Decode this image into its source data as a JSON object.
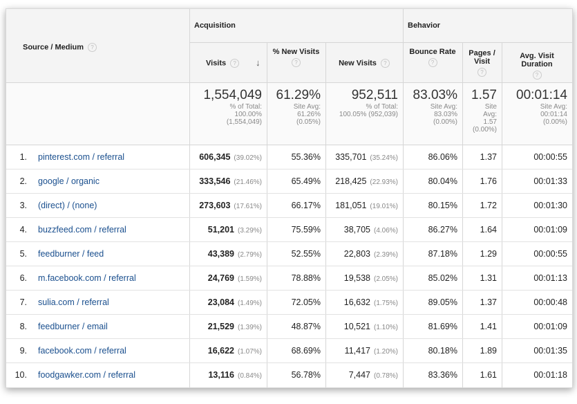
{
  "header": {
    "source_medium": "Source / Medium",
    "groups": [
      "Acquisition",
      "Behavior"
    ],
    "columns": [
      "Visits",
      "% New Visits",
      "New Visits",
      "Bounce Rate",
      "Pages / Visit",
      "Avg. Visit Duration"
    ]
  },
  "totals": [
    {
      "value": "1,554,049",
      "note": [
        "% of Total:",
        "100.00%",
        "(1,554,049)"
      ]
    },
    {
      "value": "61.29%",
      "note": [
        "Site Avg:",
        "61.26%",
        "(0.05%)"
      ]
    },
    {
      "value": "952,511",
      "note": [
        "% of Total:",
        "100.05% (952,039)"
      ]
    },
    {
      "value": "83.03%",
      "note": [
        "Site Avg:",
        "83.03%",
        "(0.00%)"
      ]
    },
    {
      "value": "1.57",
      "note": [
        "Site",
        "Avg:",
        "1.57",
        "(0.00%)"
      ]
    },
    {
      "value": "00:01:14",
      "note": [
        "Site Avg:",
        "00:01:14",
        "(0.00%)"
      ]
    }
  ],
  "rows": [
    {
      "index": "1.",
      "source": "pinterest.com / referral",
      "visits": "606,345",
      "visits_pct": "(39.02%)",
      "new_pct": "55.36%",
      "new_visits": "335,701",
      "new_visits_pct": "(35.24%)",
      "bounce": "86.06%",
      "pages": "1.37",
      "duration": "00:00:55"
    },
    {
      "index": "2.",
      "source": "google / organic",
      "visits": "333,546",
      "visits_pct": "(21.46%)",
      "new_pct": "65.49%",
      "new_visits": "218,425",
      "new_visits_pct": "(22.93%)",
      "bounce": "80.04%",
      "pages": "1.76",
      "duration": "00:01:33"
    },
    {
      "index": "3.",
      "source": "(direct) / (none)",
      "visits": "273,603",
      "visits_pct": "(17.61%)",
      "new_pct": "66.17%",
      "new_visits": "181,051",
      "new_visits_pct": "(19.01%)",
      "bounce": "80.15%",
      "pages": "1.72",
      "duration": "00:01:30"
    },
    {
      "index": "4.",
      "source": "buzzfeed.com / referral",
      "visits": "51,201",
      "visits_pct": "(3.29%)",
      "new_pct": "75.59%",
      "new_visits": "38,705",
      "new_visits_pct": "(4.06%)",
      "bounce": "86.27%",
      "pages": "1.64",
      "duration": "00:01:09"
    },
    {
      "index": "5.",
      "source": "feedburner / feed",
      "visits": "43,389",
      "visits_pct": "(2.79%)",
      "new_pct": "52.55%",
      "new_visits": "22,803",
      "new_visits_pct": "(2.39%)",
      "bounce": "87.18%",
      "pages": "1.29",
      "duration": "00:00:55"
    },
    {
      "index": "6.",
      "source": "m.facebook.com / referral",
      "visits": "24,769",
      "visits_pct": "(1.59%)",
      "new_pct": "78.88%",
      "new_visits": "19,538",
      "new_visits_pct": "(2.05%)",
      "bounce": "85.02%",
      "pages": "1.31",
      "duration": "00:01:13"
    },
    {
      "index": "7.",
      "source": "sulia.com / referral",
      "visits": "23,084",
      "visits_pct": "(1.49%)",
      "new_pct": "72.05%",
      "new_visits": "16,632",
      "new_visits_pct": "(1.75%)",
      "bounce": "89.05%",
      "pages": "1.37",
      "duration": "00:00:48"
    },
    {
      "index": "8.",
      "source": "feedburner / email",
      "visits": "21,529",
      "visits_pct": "(1.39%)",
      "new_pct": "48.87%",
      "new_visits": "10,521",
      "new_visits_pct": "(1.10%)",
      "bounce": "81.69%",
      "pages": "1.41",
      "duration": "00:01:09"
    },
    {
      "index": "9.",
      "source": "facebook.com / referral",
      "visits": "16,622",
      "visits_pct": "(1.07%)",
      "new_pct": "68.69%",
      "new_visits": "11,417",
      "new_visits_pct": "(1.20%)",
      "bounce": "80.18%",
      "pages": "1.89",
      "duration": "00:01:35"
    },
    {
      "index": "10.",
      "source": "foodgawker.com / referral",
      "visits": "13,116",
      "visits_pct": "(0.84%)",
      "new_pct": "56.78%",
      "new_visits": "7,447",
      "new_visits_pct": "(0.78%)",
      "bounce": "83.36%",
      "pages": "1.61",
      "duration": "00:01:18"
    }
  ]
}
